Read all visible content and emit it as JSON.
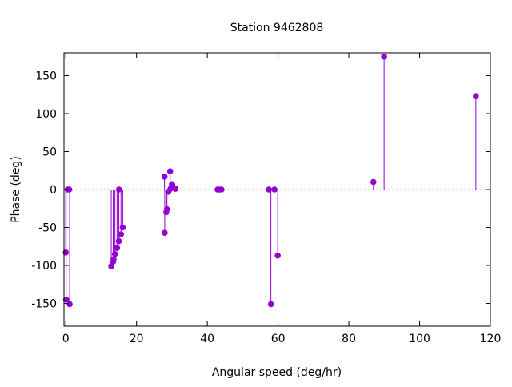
{
  "chart_data": {
    "type": "scatter",
    "style": "impulses-with-points",
    "title": "Station 9462808",
    "xlabel": "Angular speed (deg/hr)",
    "ylabel": "Phase (deg)",
    "xlim": [
      -0.5,
      120
    ],
    "ylim": [
      -180,
      180
    ],
    "xticks": [
      0,
      20,
      40,
      60,
      80,
      100,
      120
    ],
    "yticks": [
      -150,
      -100,
      -50,
      0,
      50,
      100,
      150
    ],
    "zero_line": "dotted",
    "color": "#9400d3",
    "points": [
      {
        "x": 0.0,
        "y": -83
      },
      {
        "x": 0.1,
        "y": -145
      },
      {
        "x": 0.5,
        "y": 0
      },
      {
        "x": 1.0,
        "y": 0
      },
      {
        "x": 1.1,
        "y": -151
      },
      {
        "x": 12.85,
        "y": -101
      },
      {
        "x": 13.4,
        "y": -95
      },
      {
        "x": 13.5,
        "y": -92
      },
      {
        "x": 13.9,
        "y": -85
      },
      {
        "x": 14.5,
        "y": -77
      },
      {
        "x": 15.0,
        "y": -68
      },
      {
        "x": 15.04,
        "y": 0
      },
      {
        "x": 15.6,
        "y": -59
      },
      {
        "x": 16.1,
        "y": -50
      },
      {
        "x": 27.9,
        "y": 17
      },
      {
        "x": 27.97,
        "y": -57
      },
      {
        "x": 28.4,
        "y": -30
      },
      {
        "x": 28.6,
        "y": -26
      },
      {
        "x": 29.0,
        "y": -3
      },
      {
        "x": 29.5,
        "y": 24
      },
      {
        "x": 29.6,
        "y": 1
      },
      {
        "x": 30.0,
        "y": 7
      },
      {
        "x": 30.1,
        "y": 6
      },
      {
        "x": 31.0,
        "y": 1
      },
      {
        "x": 42.9,
        "y": 0
      },
      {
        "x": 43.5,
        "y": 0
      },
      {
        "x": 44.0,
        "y": 0
      },
      {
        "x": 57.4,
        "y": 0
      },
      {
        "x": 57.97,
        "y": -151
      },
      {
        "x": 58.98,
        "y": 0
      },
      {
        "x": 59.9,
        "y": -87
      },
      {
        "x": 86.95,
        "y": 10
      },
      {
        "x": 89.96,
        "y": 175
      },
      {
        "x": 115.9,
        "y": 123
      }
    ]
  }
}
